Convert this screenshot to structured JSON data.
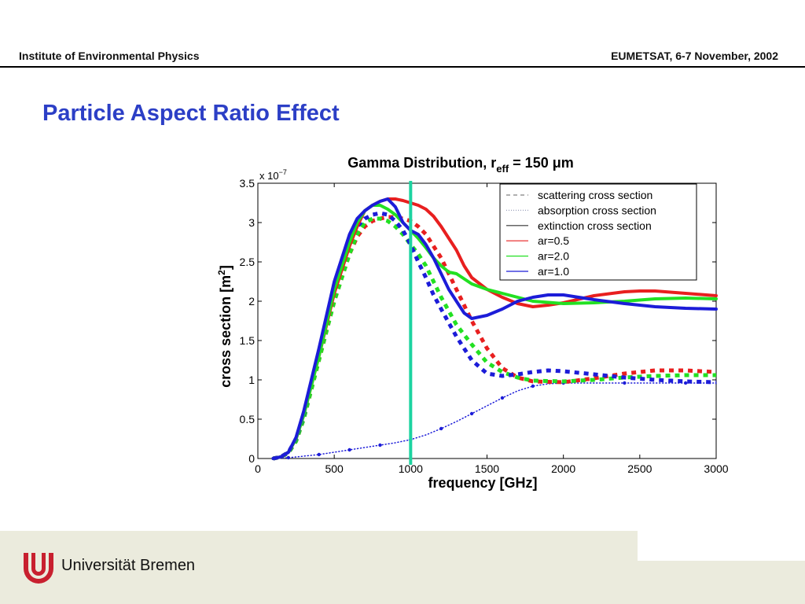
{
  "header": {
    "left": "Institute of Environmental Physics",
    "right": "EUMETSAT, 6-7 November, 2002"
  },
  "slide_title": "Particle Aspect Ratio Effect",
  "footer": {
    "university": "Universität Bremen"
  },
  "chart_data": {
    "type": "line",
    "title": "Gamma Distribution, r",
    "title_sub": "eff",
    "title_tail": " = 150 μm",
    "xlabel": "frequency [GHz]",
    "ylabel": "cross section [m",
    "ylabel_sup": "2",
    "ylabel_tail": "]",
    "y_multiplier": "x 10",
    "y_multiplier_exp": "−7",
    "xlim": [
      0,
      3000
    ],
    "ylim": [
      0,
      3.5
    ],
    "x_ticks": [
      0,
      500,
      1000,
      1500,
      2000,
      2500,
      3000
    ],
    "y_ticks": [
      0,
      0.5,
      1,
      1.5,
      2,
      2.5,
      3,
      3.5
    ],
    "y_tick_labels": [
      "0",
      "0.5",
      "1",
      "1.5",
      "2",
      "2.5",
      "3",
      "3.5"
    ],
    "grid": false,
    "legend_position": "top-right",
    "legend": [
      {
        "label": "scattering cross section",
        "style": "dashed",
        "color": "#808080"
      },
      {
        "label": "absorption cross section",
        "style": "dotted",
        "color": "#9aa0bb"
      },
      {
        "label": "extinction cross section",
        "style": "solid",
        "color": "#333333"
      },
      {
        "label": "ar=0.5",
        "style": "solid",
        "color": "#e81f1f"
      },
      {
        "label": "ar=2.0",
        "style": "solid",
        "color": "#22e022"
      },
      {
        "label": "ar=1.0",
        "style": "solid",
        "color": "#1c1cd8"
      }
    ],
    "marker_line": {
      "x": 1000,
      "color": "#1dd3a0"
    },
    "series": [
      {
        "name": "ar=0.5",
        "quantity": "extinction",
        "style": "solid",
        "color": "#e81f1f",
        "x": [
          100,
          150,
          200,
          250,
          300,
          400,
          500,
          600,
          650,
          700,
          750,
          800,
          850,
          900,
          950,
          1000,
          1050,
          1100,
          1150,
          1200,
          1250,
          1300,
          1350,
          1400,
          1500,
          1600,
          1700,
          1800,
          1900,
          2000,
          2200,
          2400,
          2500,
          2600,
          2800,
          3000
        ],
        "y": [
          0,
          0.02,
          0.08,
          0.25,
          0.55,
          1.3,
          2.1,
          2.7,
          2.95,
          3.15,
          3.22,
          3.27,
          3.3,
          3.3,
          3.28,
          3.25,
          3.22,
          3.17,
          3.08,
          2.95,
          2.8,
          2.65,
          2.45,
          2.3,
          2.15,
          2.05,
          1.97,
          1.93,
          1.95,
          1.98,
          2.07,
          2.12,
          2.13,
          2.13,
          2.1,
          2.07
        ]
      },
      {
        "name": "ar=2.0",
        "quantity": "extinction",
        "style": "solid",
        "color": "#22e022",
        "x": [
          100,
          150,
          200,
          250,
          300,
          400,
          500,
          600,
          650,
          700,
          750,
          800,
          850,
          900,
          950,
          1000,
          1050,
          1100,
          1150,
          1200,
          1250,
          1300,
          1400,
          1500,
          1600,
          1700,
          1800,
          2000,
          2200,
          2400,
          2600,
          2800,
          3000
        ],
        "y": [
          0,
          0.02,
          0.08,
          0.25,
          0.55,
          1.3,
          2.15,
          2.75,
          3.0,
          3.15,
          3.22,
          3.22,
          3.17,
          3.1,
          3.0,
          2.9,
          2.8,
          2.68,
          2.55,
          2.45,
          2.37,
          2.35,
          2.22,
          2.15,
          2.1,
          2.05,
          2.0,
          1.97,
          1.98,
          2.0,
          2.03,
          2.04,
          2.03
        ]
      },
      {
        "name": "ar=1.0",
        "quantity": "extinction",
        "style": "solid",
        "color": "#1c1cd8",
        "x": [
          100,
          150,
          200,
          250,
          300,
          400,
          500,
          600,
          650,
          700,
          750,
          800,
          850,
          900,
          950,
          1000,
          1050,
          1100,
          1150,
          1200,
          1250,
          1300,
          1350,
          1400,
          1500,
          1600,
          1700,
          1800,
          1900,
          2000,
          2200,
          2400,
          2600,
          2800,
          3000
        ],
        "y": [
          0,
          0.02,
          0.08,
          0.27,
          0.6,
          1.4,
          2.25,
          2.85,
          3.05,
          3.15,
          3.22,
          3.27,
          3.3,
          3.2,
          3.0,
          2.9,
          2.85,
          2.72,
          2.55,
          2.35,
          2.15,
          2.0,
          1.85,
          1.78,
          1.82,
          1.9,
          2.0,
          2.05,
          2.08,
          2.08,
          2.02,
          1.97,
          1.93,
          1.91,
          1.9
        ]
      },
      {
        "name": "ar=0.5",
        "quantity": "scattering",
        "style": "dashed",
        "color": "#e81f1f",
        "x": [
          100,
          150,
          200,
          250,
          300,
          400,
          500,
          600,
          650,
          700,
          750,
          800,
          850,
          900,
          950,
          1000,
          1050,
          1100,
          1150,
          1200,
          1300,
          1400,
          1500,
          1600,
          1700,
          1800,
          2000,
          2200,
          2400,
          2600,
          2800,
          3000
        ],
        "y": [
          0,
          0.02,
          0.07,
          0.22,
          0.5,
          1.25,
          2.0,
          2.6,
          2.82,
          2.95,
          3.02,
          3.05,
          3.07,
          3.07,
          3.05,
          3.02,
          2.95,
          2.85,
          2.7,
          2.55,
          2.15,
          1.75,
          1.4,
          1.15,
          1.03,
          0.98,
          0.97,
          1.02,
          1.08,
          1.12,
          1.12,
          1.1
        ]
      },
      {
        "name": "ar=2.0",
        "quantity": "scattering",
        "style": "dashed",
        "color": "#22e022",
        "x": [
          100,
          150,
          200,
          250,
          300,
          400,
          500,
          600,
          650,
          700,
          750,
          800,
          850,
          900,
          950,
          1000,
          1050,
          1100,
          1150,
          1200,
          1300,
          1400,
          1500,
          1600,
          1700,
          1800,
          2000,
          2200,
          2400,
          2600,
          2800,
          3000
        ],
        "y": [
          0,
          0.02,
          0.07,
          0.22,
          0.5,
          1.25,
          2.0,
          2.6,
          2.85,
          3.0,
          3.05,
          3.05,
          3.02,
          2.95,
          2.85,
          2.72,
          2.6,
          2.45,
          2.25,
          2.05,
          1.7,
          1.45,
          1.22,
          1.1,
          1.03,
          0.99,
          0.98,
          1.0,
          1.03,
          1.05,
          1.06,
          1.06
        ]
      },
      {
        "name": "ar=1.0",
        "quantity": "scattering",
        "style": "dashed",
        "color": "#1c1cd8",
        "x": [
          100,
          150,
          200,
          250,
          300,
          400,
          500,
          600,
          650,
          700,
          750,
          800,
          850,
          900,
          950,
          1000,
          1050,
          1100,
          1150,
          1200,
          1300,
          1400,
          1500,
          1600,
          1700,
          1800,
          1900,
          2000,
          2200,
          2400,
          2600,
          2800,
          3000
        ],
        "y": [
          0,
          0.02,
          0.08,
          0.25,
          0.55,
          1.35,
          2.15,
          2.75,
          2.95,
          3.05,
          3.1,
          3.12,
          3.1,
          3.02,
          2.9,
          2.72,
          2.5,
          2.3,
          2.08,
          1.9,
          1.55,
          1.25,
          1.08,
          1.05,
          1.07,
          1.1,
          1.12,
          1.11,
          1.07,
          1.03,
          1.0,
          0.98,
          0.97
        ]
      },
      {
        "name": "absorption",
        "quantity": "absorption",
        "style": "dotted",
        "color": "#1c1cd8",
        "x": [
          100,
          200,
          300,
          400,
          500,
          600,
          700,
          800,
          900,
          1000,
          1100,
          1200,
          1300,
          1400,
          1500,
          1600,
          1700,
          1800,
          1900,
          2000,
          2200,
          2400,
          2600,
          2800,
          3000
        ],
        "y": [
          0,
          0.01,
          0.03,
          0.05,
          0.08,
          0.11,
          0.14,
          0.17,
          0.2,
          0.24,
          0.3,
          0.38,
          0.47,
          0.57,
          0.67,
          0.77,
          0.86,
          0.92,
          0.95,
          0.96,
          0.96,
          0.96,
          0.96,
          0.96,
          0.96
        ]
      }
    ]
  }
}
